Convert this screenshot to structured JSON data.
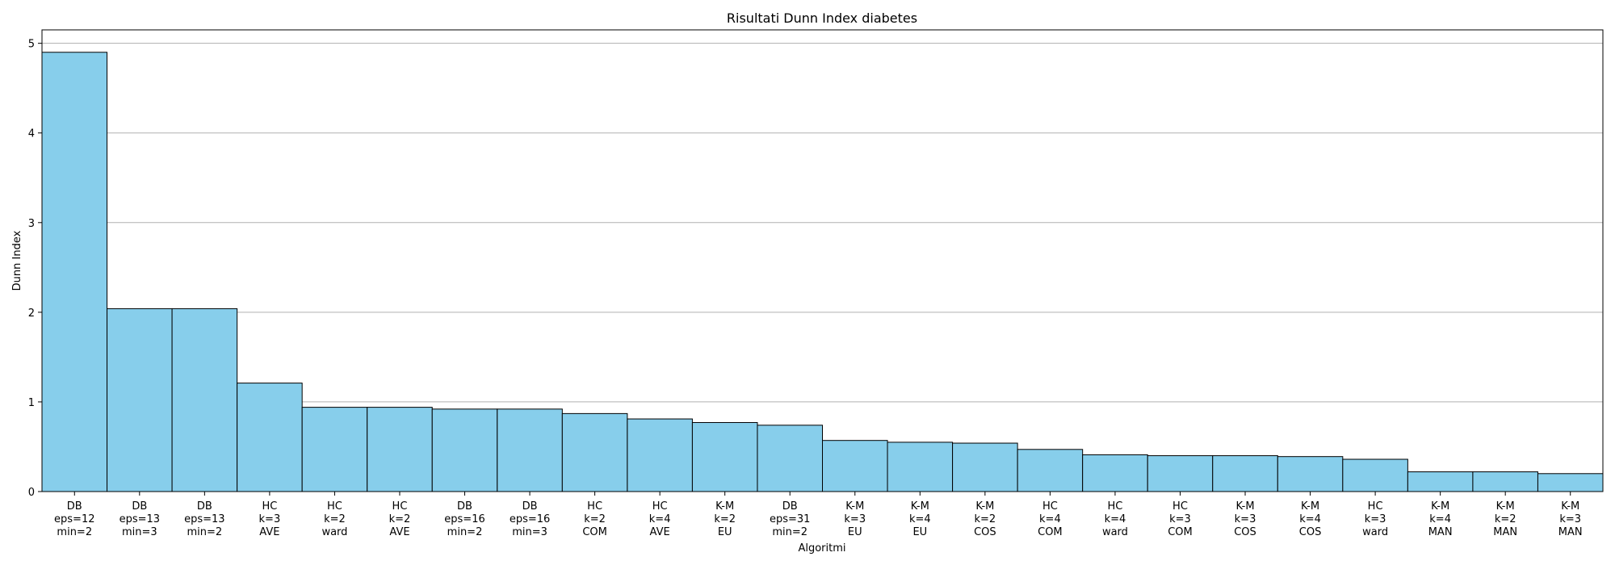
{
  "chart_data": {
    "type": "bar",
    "title": "Risultati Dunn Index diabetes",
    "xlabel": "Algoritmi",
    "ylabel": "Dunn Index",
    "ylim": [
      0,
      5.15
    ],
    "yticks": [
      0,
      1,
      2,
      3,
      4,
      5
    ],
    "grid": "y",
    "bar_color": "#87ceeb",
    "edge_color": "#000000",
    "categories": [
      [
        "DB",
        "eps=12",
        "min=2"
      ],
      [
        "DB",
        "eps=13",
        "min=3"
      ],
      [
        "DB",
        "eps=13",
        "min=2"
      ],
      [
        "HC",
        "k=3",
        "AVE"
      ],
      [
        "HC",
        "k=2",
        "ward"
      ],
      [
        "HC",
        "k=2",
        "AVE"
      ],
      [
        "DB",
        "eps=16",
        "min=2"
      ],
      [
        "DB",
        "eps=16",
        "min=3"
      ],
      [
        "HC",
        "k=2",
        "COM"
      ],
      [
        "HC",
        "k=4",
        "AVE"
      ],
      [
        "K-M",
        "k=2",
        "EU"
      ],
      [
        "DB",
        "eps=31",
        "min=2"
      ],
      [
        "K-M",
        "k=3",
        "EU"
      ],
      [
        "K-M",
        "k=4",
        "EU"
      ],
      [
        "K-M",
        "k=2",
        "COS"
      ],
      [
        "HC",
        "k=4",
        "COM"
      ],
      [
        "HC",
        "k=4",
        "ward"
      ],
      [
        "HC",
        "k=3",
        "COM"
      ],
      [
        "K-M",
        "k=3",
        "COS"
      ],
      [
        "K-M",
        "k=4",
        "COS"
      ],
      [
        "HC",
        "k=3",
        "ward"
      ],
      [
        "K-M",
        "k=4",
        "MAN"
      ],
      [
        "K-M",
        "k=2",
        "MAN"
      ],
      [
        "K-M",
        "k=3",
        "MAN"
      ]
    ],
    "values": [
      4.9,
      2.04,
      2.04,
      1.21,
      0.94,
      0.94,
      0.92,
      0.92,
      0.87,
      0.81,
      0.77,
      0.74,
      0.57,
      0.55,
      0.54,
      0.47,
      0.41,
      0.4,
      0.4,
      0.39,
      0.36,
      0.22,
      0.22,
      0.2
    ]
  }
}
